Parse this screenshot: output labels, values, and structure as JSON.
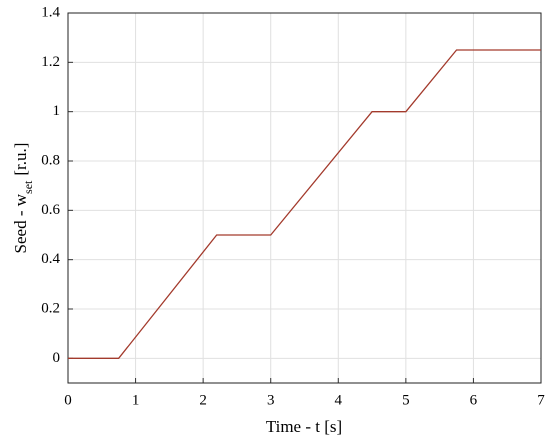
{
  "chart_data": {
    "type": "line",
    "xlabel": "Time - t [s]",
    "ylabel": {
      "main": "Seed - w",
      "sub": "set",
      "unit": "[r.u.]"
    },
    "x": [
      0,
      0.75,
      2.2,
      3,
      4.5,
      5,
      5.75,
      7
    ],
    "values": [
      0,
      0,
      0.5,
      0.5,
      1,
      1,
      1.25,
      1.25
    ],
    "color": "#a33a2c",
    "xlim": [
      0,
      7
    ],
    "xticks": [
      0,
      1,
      2,
      3,
      4,
      5,
      6,
      7
    ],
    "ylim": [
      -0.1,
      1.4
    ],
    "yticks": [
      0,
      0.2,
      0.4,
      0.6,
      0.8,
      1,
      1.2,
      1.4
    ],
    "grid": true
  }
}
